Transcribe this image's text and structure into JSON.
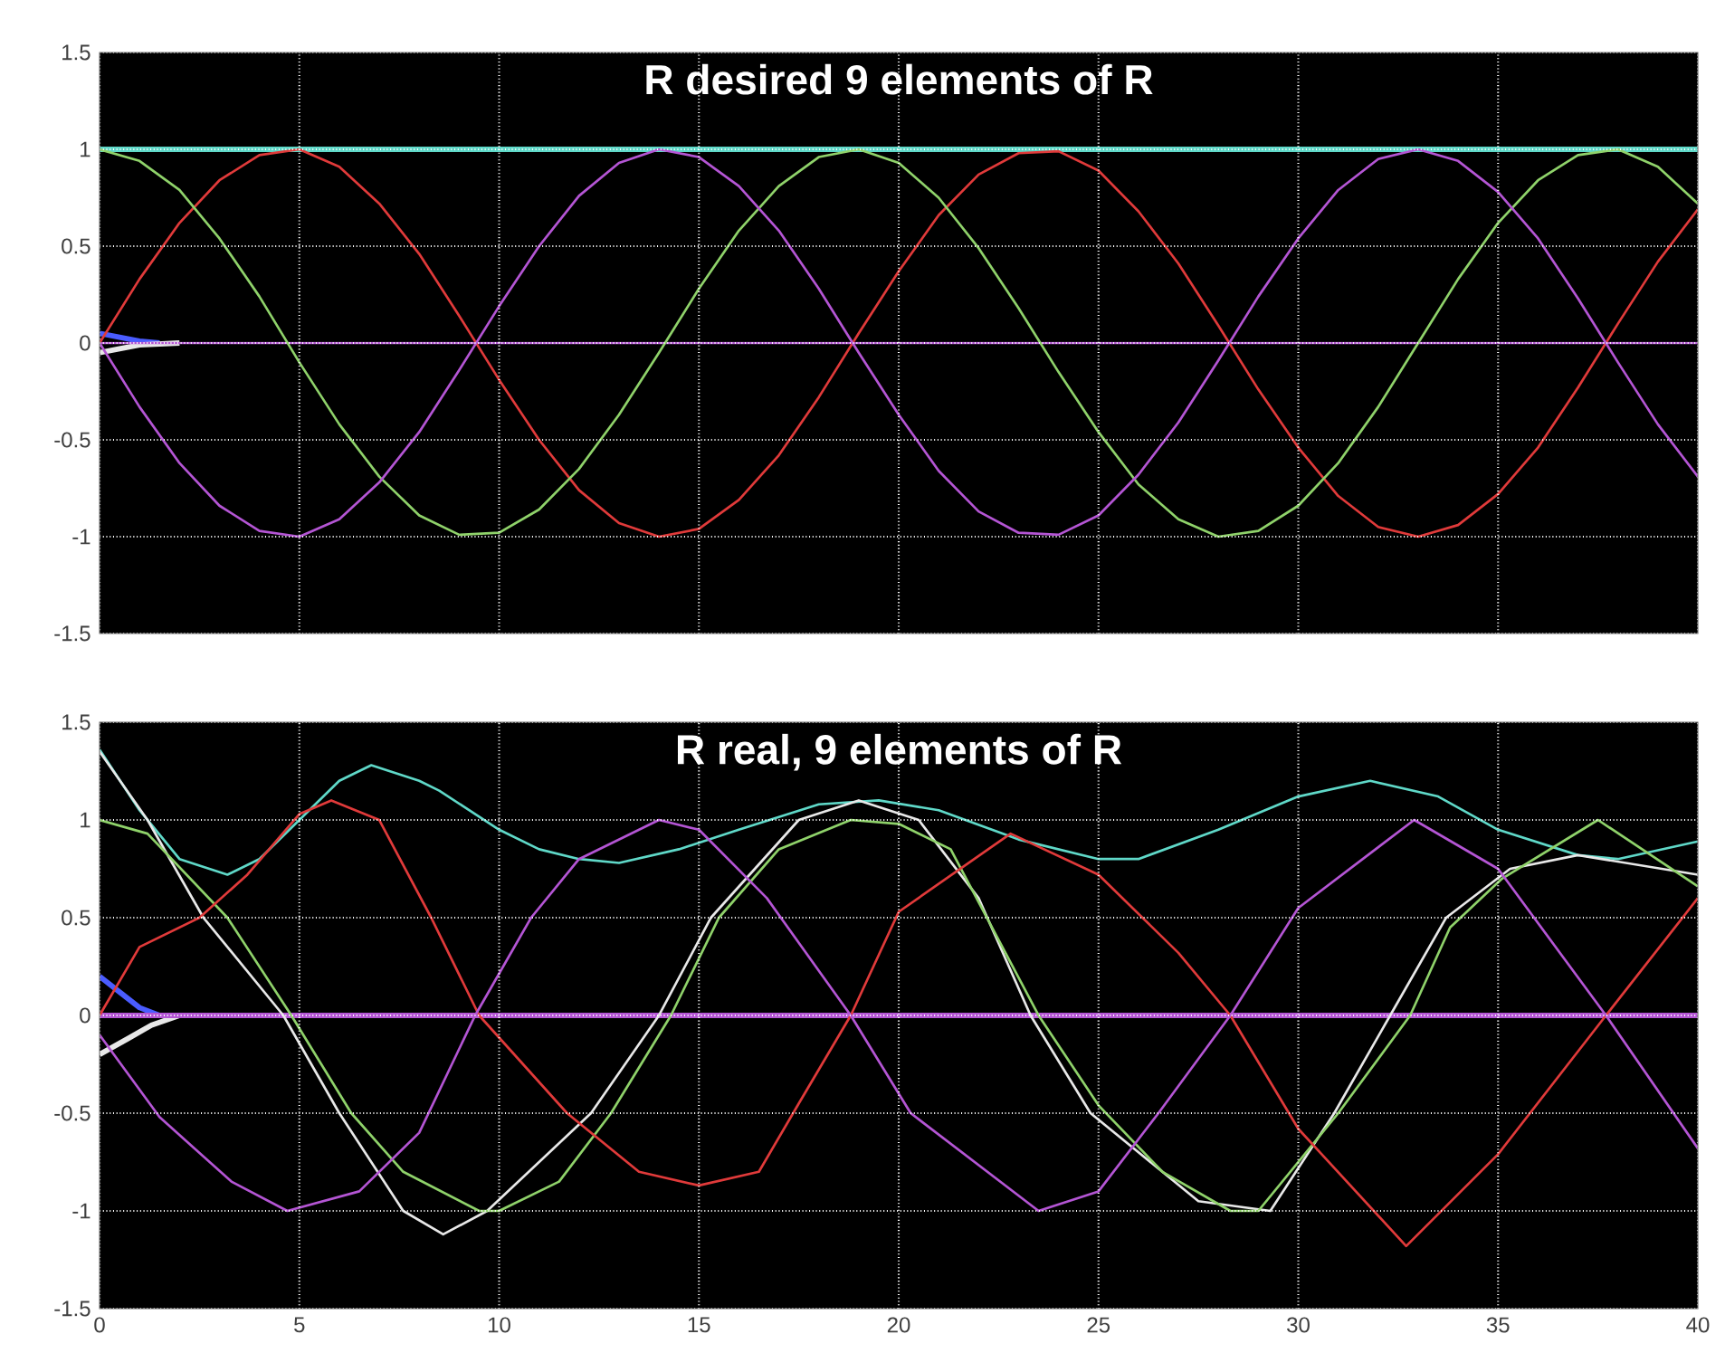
{
  "chart_data": [
    {
      "type": "line",
      "title": "R desired 9 elements of R",
      "xlim": [
        0,
        40
      ],
      "ylim": [
        -1.5,
        1.5
      ],
      "xticks": [
        0,
        5,
        10,
        15,
        20,
        25,
        30,
        35,
        40
      ],
      "yticks": [
        -1.5,
        -1,
        -0.5,
        0,
        0.5,
        1,
        1.5
      ],
      "grid": true,
      "tick_labels": "y",
      "x": [
        0,
        1,
        2,
        3,
        4,
        5,
        6,
        7,
        8,
        9,
        10,
        11,
        12,
        13,
        14,
        15,
        16,
        17,
        18,
        19,
        20,
        21,
        22,
        23,
        24,
        25,
        26,
        27,
        28,
        29,
        30,
        31,
        32,
        33,
        34,
        35,
        36,
        37,
        38,
        39,
        40
      ],
      "series": [
        {
          "color": "#5fd8c8",
          "x": [
            0,
            40
          ],
          "values": [
            1,
            1
          ]
        },
        {
          "color": "#4a5cff",
          "x": [
            0,
            0.5,
            1,
            1.5
          ],
          "values": [
            0.05,
            0.03,
            0.01,
            0
          ]
        },
        {
          "color": "#e8e8e8",
          "x": [
            0,
            0.5,
            1,
            2
          ],
          "values": [
            -0.05,
            -0.03,
            -0.01,
            0
          ]
        },
        {
          "color": "#b455d4",
          "x": [
            0,
            40
          ],
          "values": [
            0,
            0
          ]
        },
        {
          "color": "#e03a3a",
          "values": [
            0,
            0.33,
            0.62,
            0.84,
            0.97,
            1.0,
            0.91,
            0.72,
            0.46,
            0.14,
            -0.19,
            -0.5,
            -0.76,
            -0.93,
            -1.0,
            -0.96,
            -0.81,
            -0.58,
            -0.28,
            0.05,
            0.37,
            0.66,
            0.87,
            0.98,
            0.99,
            0.89,
            0.68,
            0.41,
            0.09,
            -0.24,
            -0.54,
            -0.79,
            -0.95,
            -1.0,
            -0.94,
            -0.78,
            -0.54,
            -0.23,
            0.1,
            0.42,
            0.69
          ]
        },
        {
          "color": "#8fd26a",
          "values": [
            1,
            0.94,
            0.79,
            0.54,
            0.24,
            -0.1,
            -0.42,
            -0.69,
            -0.89,
            -0.99,
            -0.98,
            -0.86,
            -0.65,
            -0.37,
            -0.05,
            0.28,
            0.58,
            0.81,
            0.96,
            1.0,
            0.93,
            0.75,
            0.49,
            0.18,
            -0.15,
            -0.46,
            -0.73,
            -0.91,
            -1.0,
            -0.97,
            -0.84,
            -0.62,
            -0.33,
            0,
            0.33,
            0.62,
            0.84,
            0.97,
            1.0,
            0.91,
            0.72
          ]
        },
        {
          "color": "#b455d4",
          "values": [
            0,
            -0.33,
            -0.62,
            -0.84,
            -0.97,
            -1.0,
            -0.91,
            -0.72,
            -0.46,
            -0.14,
            0.19,
            0.5,
            0.76,
            0.93,
            1.0,
            0.96,
            0.81,
            0.58,
            0.28,
            -0.05,
            -0.37,
            -0.66,
            -0.87,
            -0.98,
            -0.99,
            -0.89,
            -0.68,
            -0.41,
            -0.09,
            0.24,
            0.54,
            0.79,
            0.95,
            1.0,
            0.94,
            0.78,
            0.54,
            0.23,
            -0.1,
            -0.42,
            -0.69
          ]
        }
      ]
    },
    {
      "type": "line",
      "title": "R real, 9 elements of R",
      "xlim": [
        0,
        40
      ],
      "ylim": [
        -1.5,
        1.5
      ],
      "xticks": [
        0,
        5,
        10,
        15,
        20,
        25,
        30,
        35,
        40
      ],
      "yticks": [
        -1.5,
        -1,
        -0.5,
        0,
        0.5,
        1,
        1.5
      ],
      "grid": true,
      "series": [
        {
          "color": "#4a5cff",
          "x": [
            0,
            0.5,
            1,
            1.5
          ],
          "values": [
            0.2,
            0.12,
            0.04,
            0
          ]
        },
        {
          "color": "#e8e8e8",
          "x": [
            0,
            0.7,
            1.3,
            2
          ],
          "values": [
            -0.2,
            -0.12,
            -0.05,
            0
          ]
        },
        {
          "color": "#b455d4",
          "x": [
            0,
            40
          ],
          "values": [
            0,
            0
          ]
        },
        {
          "color": "#5fd8c8",
          "x": [
            0,
            1,
            2,
            3.2,
            4,
            5,
            6,
            6.8,
            8,
            8.5,
            10,
            11,
            12,
            13,
            14.5,
            16,
            18,
            19.5,
            21,
            23,
            25,
            26,
            28,
            30,
            31.8,
            33.5,
            35,
            37,
            38,
            40
          ],
          "values": [
            1.36,
            1.05,
            0.8,
            0.72,
            0.8,
            1.0,
            1.2,
            1.28,
            1.2,
            1.15,
            0.95,
            0.85,
            0.8,
            0.78,
            0.85,
            0.95,
            1.08,
            1.1,
            1.05,
            0.9,
            0.8,
            0.8,
            0.95,
            1.12,
            1.2,
            1.12,
            0.95,
            0.82,
            0.8,
            0.89
          ]
        },
        {
          "color": "#e8e8e8",
          "x": [
            0,
            1.2,
            2.6,
            4.6,
            6,
            7.6,
            8.6,
            9.7,
            12.3,
            14,
            15.3,
            17.5,
            19,
            20.5,
            22,
            23.3,
            24.8,
            27.5,
            29.3,
            30.9,
            32.3,
            33.7,
            35.3,
            37,
            40
          ],
          "values": [
            1.35,
            1.0,
            0.5,
            0,
            -0.5,
            -1.0,
            -1.12,
            -1.0,
            -0.5,
            0,
            0.5,
            1.0,
            1.1,
            1.0,
            0.6,
            0,
            -0.5,
            -0.95,
            -1.0,
            -0.5,
            0,
            0.5,
            0.75,
            0.82,
            0.72
          ]
        },
        {
          "color": "#8fd26a",
          "x": [
            0,
            1.2,
            3.2,
            4.8,
            6.3,
            7.6,
            9.5,
            10,
            11.5,
            12.8,
            14.3,
            15.5,
            17,
            18.8,
            20,
            21.3,
            23.5,
            25,
            26.6,
            28.3,
            29,
            31,
            32.8,
            33.8,
            35.1,
            37.5,
            40
          ],
          "values": [
            1.0,
            0.93,
            0.5,
            0,
            -0.5,
            -0.8,
            -1.0,
            -1.0,
            -0.85,
            -0.5,
            0,
            0.5,
            0.85,
            1.0,
            0.98,
            0.85,
            0,
            -0.46,
            -0.8,
            -1.0,
            -1.0,
            -0.5,
            0,
            0.45,
            0.7,
            1.0,
            0.66
          ]
        },
        {
          "color": "#e03a3a",
          "x": [
            0,
            1,
            2.5,
            3.7,
            5,
            5.8,
            7,
            8.3,
            9.5,
            11.7,
            13.5,
            15,
            16.5,
            17.5,
            18.8,
            20,
            22.8,
            25,
            27,
            28.3,
            30,
            32.7,
            35,
            37.7,
            40
          ],
          "values": [
            0,
            0.35,
            0.5,
            0.72,
            1.03,
            1.1,
            1.0,
            0.5,
            0,
            -0.5,
            -0.8,
            -0.87,
            -0.8,
            -0.45,
            0,
            0.53,
            0.93,
            0.72,
            0.32,
            0,
            -0.58,
            -1.18,
            -0.71,
            0,
            0.6
          ]
        },
        {
          "color": "#b455d4",
          "x": [
            0,
            1.5,
            3.3,
            4.7,
            6.5,
            8,
            9.4,
            10.8,
            12,
            14,
            15,
            16.7,
            18.8,
            20.3,
            23.5,
            25,
            26.5,
            28.3,
            30,
            32.9,
            35,
            37.7,
            40
          ],
          "values": [
            -0.1,
            -0.52,
            -0.85,
            -1.0,
            -0.9,
            -0.6,
            0,
            0.5,
            0.8,
            1.0,
            0.95,
            0.6,
            0,
            -0.5,
            -1.0,
            -0.9,
            -0.5,
            0,
            0.55,
            1.0,
            0.75,
            0,
            -0.68
          ]
        }
      ]
    }
  ]
}
